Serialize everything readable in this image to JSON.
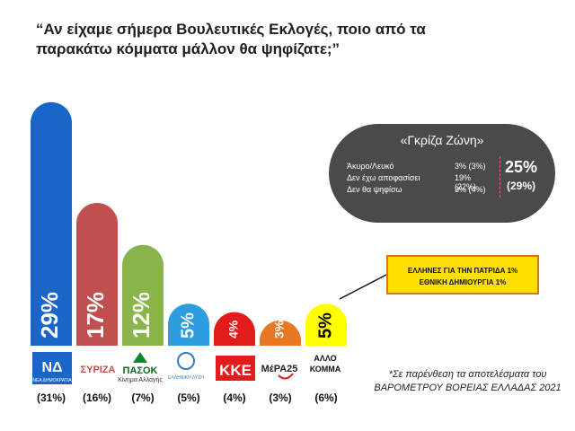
{
  "title": "“Αν είχαμε σήμερα Βουλευτικές Εκλογές, ποιο από τα παρακάτω κόμματα μάλλον θα ψηφίζατε;”",
  "chart_data": {
    "type": "bar",
    "categories": [
      "ΝΕΑ ΔΗΜΟΚΡΑΤΙΑ",
      "ΣΥΡΙΖΑ",
      "ΠΑΣΟΚ Κίνημα Αλλαγής",
      "ΕΛΛΗΝΙΚΗ ΛΥΣΗ",
      "ΚΚΕ",
      "ΜέΡΑ25",
      "ΑΛΛΟ ΚΟΜΜΑ"
    ],
    "values": [
      29,
      17,
      12,
      5,
      4,
      3,
      5
    ],
    "value_labels": [
      "29%",
      "17%",
      "12%",
      "5%",
      "4%",
      "3%",
      "5%"
    ],
    "previous_labels": [
      "(31%)",
      "(16%)",
      "(7%)",
      "(5%)",
      "(4%)",
      "(3%)",
      "(6%)"
    ],
    "colors": [
      "#1a66c8",
      "#c0504d",
      "#8ab54b",
      "#2e9de0",
      "#e21b1b",
      "#e87722",
      "#ffff00"
    ],
    "label_colors": [
      "#ffffff",
      "#ffffff",
      "#ffffff",
      "#ffffff",
      "#ffffff",
      "#ffffff",
      "#000000"
    ],
    "ylim": [
      0,
      31
    ]
  },
  "logos": {
    "nd": "ΝΕΑ ΔΗΜΟΚΡΑΤΙΑ",
    "syriza": "ΣΥΡΙΖΑ",
    "pasok": "ΠΑΣΟΚ",
    "pasok_sub": "Κίνημα Αλλαγής",
    "elliniki_lysi": "ΕΛΛΗΝΙΚΗ ΛΥΣΗ",
    "kke": "ΚΚΕ",
    "mera25": "ΜέΡΑ25",
    "allo_1": "ΑΛΛΟ",
    "allo_2": "ΚΟΜΜΑ"
  },
  "grey_zone": {
    "title": "«Γκρίζα Ζώνη»",
    "rows": [
      {
        "label": "Άκυρο/Λευκό",
        "value": "3% (3%)"
      },
      {
        "label": "Δεν έχω αποφασίσει",
        "value": "19% (22%)"
      },
      {
        "label": "Δεν θα ψηφίσω",
        "value": "3% (4%)"
      }
    ],
    "total": "25%",
    "total_previous": "(29%)"
  },
  "other_parties": {
    "line1": "ΕΛΛΗΝΕΣ ΓΙΑ ΤΗΝ ΠΑΤΡΙΔΑ 1%",
    "line2": "ΕΘΝΙΚΗ ΔΗΜΙΟΥΡΓΙΑ 1%"
  },
  "footnote": "*Σε παρένθεση τα αποτελέσματα του ΒΑΡΟΜΕΤΡΟΥ ΒΟΡΕΙΑΣ ΕΛΛΑΔΑΣ 2021"
}
